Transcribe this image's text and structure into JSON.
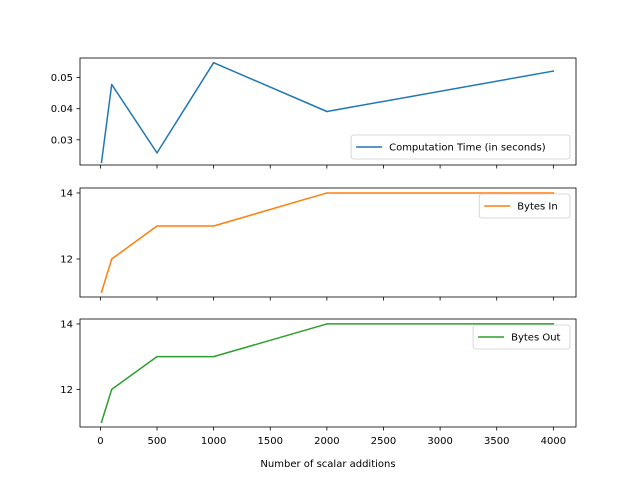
{
  "chart_data": [
    {
      "type": "line",
      "title": "",
      "xlabel": "",
      "ylabel": "",
      "xlim": [
        -180,
        4200
      ],
      "ylim": [
        0.0219,
        0.0563
      ],
      "x_ticks": [
        0,
        500,
        1000,
        1500,
        2000,
        2500,
        3000,
        3500,
        4000
      ],
      "show_x_tick_labels": false,
      "y_ticks": [
        0.03,
        0.04,
        0.05
      ],
      "y_tick_labels": [
        "0.03",
        "0.04",
        "0.05"
      ],
      "grid": false,
      "legend_position": "lower-right",
      "series": [
        {
          "name": "Computation Time (in seconds)",
          "color": "#1f77b4",
          "x": [
            10,
            100,
            500,
            1000,
            2000,
            4000
          ],
          "y": [
            0.0228,
            0.0478,
            0.0258,
            0.0548,
            0.0391,
            0.0521
          ]
        }
      ]
    },
    {
      "type": "line",
      "title": "",
      "xlabel": "",
      "ylabel": "",
      "xlim": [
        -180,
        4200
      ],
      "ylim": [
        10.85,
        14.15
      ],
      "x_ticks": [
        0,
        500,
        1000,
        1500,
        2000,
        2500,
        3000,
        3500,
        4000
      ],
      "show_x_tick_labels": false,
      "y_ticks": [
        12,
        14
      ],
      "y_tick_labels": [
        "12",
        "14"
      ],
      "grid": false,
      "legend_position": "upper-right",
      "series": [
        {
          "name": "Bytes In",
          "color": "#ff7f0e",
          "x": [
            10,
            100,
            500,
            1000,
            2000,
            4000
          ],
          "y": [
            11,
            12,
            13,
            13,
            14,
            14
          ]
        }
      ]
    },
    {
      "type": "line",
      "title": "",
      "xlabel": "Number of scalar additions",
      "ylabel": "",
      "xlim": [
        -180,
        4200
      ],
      "ylim": [
        10.85,
        14.15
      ],
      "x_ticks": [
        0,
        500,
        1000,
        1500,
        2000,
        2500,
        3000,
        3500,
        4000
      ],
      "x_tick_labels": [
        "0",
        "500",
        "1000",
        "1500",
        "2000",
        "2500",
        "3000",
        "3500",
        "4000"
      ],
      "show_x_tick_labels": true,
      "y_ticks": [
        12,
        14
      ],
      "y_tick_labels": [
        "12",
        "14"
      ],
      "grid": false,
      "legend_position": "upper-right",
      "series": [
        {
          "name": "Bytes Out",
          "color": "#2ca02c",
          "x": [
            10,
            100,
            500,
            1000,
            2000,
            4000
          ],
          "y": [
            11,
            12,
            13,
            13,
            14,
            14
          ]
        }
      ]
    }
  ]
}
